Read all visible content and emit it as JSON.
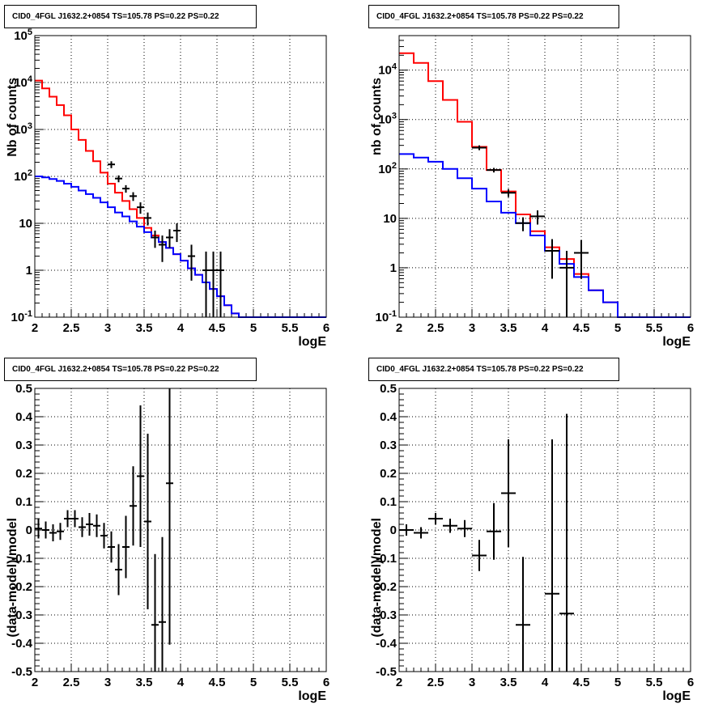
{
  "chart_data": [
    {
      "type": "line",
      "title": "CID0_4FGL J1632.2+0854 TS=105.78 PS=0.22 PS=0.22",
      "xlabel": "logE",
      "ylabel": "Nb of counts",
      "xlim": [
        2,
        6
      ],
      "ylim": [
        0.1,
        100000
      ],
      "yscale": "log",
      "grid": true,
      "xticks": [
        "2",
        "2.5",
        "3",
        "3.5",
        "4",
        "4.5",
        "5",
        "5.5",
        "6"
      ],
      "yticks": [
        "10^-1",
        "1",
        "10",
        "10^2",
        "10^3",
        "10^4",
        "10^5"
      ],
      "series": [
        {
          "color": "#ff0000",
          "style": "step",
          "bin_width": 0.1,
          "x": [
            2.05,
            2.15,
            2.25,
            2.35,
            2.45,
            2.55,
            2.65,
            2.75,
            2.85,
            2.95,
            3.05,
            3.15,
            3.25,
            3.35,
            3.45,
            3.55,
            3.65,
            3.75,
            3.85,
            3.95,
            4.05,
            4.15,
            4.25,
            4.35,
            4.45,
            4.55,
            4.65,
            4.75,
            4.85,
            4.95,
            5.05,
            5.15,
            5.25,
            5.35,
            5.45,
            5.55,
            5.65,
            5.75,
            5.85,
            5.95
          ],
          "y": [
            11000,
            7500,
            5000,
            3300,
            2000,
            1000,
            600,
            350,
            210,
            120,
            70,
            45,
            30,
            20,
            13,
            8,
            5.5,
            4,
            3,
            2.2,
            1.6,
            1.1,
            0.8,
            0.55,
            0.4,
            0.28,
            0.18,
            0.12,
            0.1,
            0.1,
            0.1,
            0.1,
            0.1,
            0.1,
            0.1,
            0.1,
            0.1,
            0.1,
            0.1,
            0.1
          ]
        },
        {
          "color": "#0000ff",
          "style": "step",
          "bin_width": 0.1,
          "x": [
            2.05,
            2.15,
            2.25,
            2.35,
            2.45,
            2.55,
            2.65,
            2.75,
            2.85,
            2.95,
            3.05,
            3.15,
            3.25,
            3.35,
            3.45,
            3.55,
            3.65,
            3.75,
            3.85,
            3.95,
            4.05,
            4.15,
            4.25,
            4.35,
            4.45,
            4.55,
            4.65,
            4.75,
            4.85,
            4.95,
            5.05,
            5.15,
            5.25,
            5.35,
            5.45,
            5.55,
            5.65,
            5.75,
            5.85,
            5.95
          ],
          "y": [
            100,
            95,
            88,
            80,
            70,
            60,
            50,
            42,
            35,
            28,
            22,
            17,
            14,
            11,
            8.5,
            6.5,
            5,
            4,
            3,
            2.2,
            1.6,
            1.1,
            0.8,
            0.55,
            0.4,
            0.28,
            0.18,
            0.12,
            0.1,
            0.1,
            0.1,
            0.1,
            0.1,
            0.1,
            0.1,
            0.1,
            0.1,
            0.1,
            0.1,
            0.1
          ]
        },
        {
          "color": "#000000",
          "style": "errorbar",
          "x": [
            3.05,
            3.15,
            3.25,
            3.35,
            3.45,
            3.55,
            3.65,
            3.75,
            3.85,
            3.95,
            4.15,
            4.35,
            4.45,
            4.55
          ],
          "xerr": 0.05,
          "y": [
            180,
            90,
            55,
            38,
            22,
            13,
            5,
            3.5,
            5,
            7,
            2,
            1,
            1,
            1
          ],
          "ylow": [
            150,
            75,
            45,
            30,
            16,
            9,
            3,
            1.5,
            3,
            4,
            0.6,
            0.1,
            0.1,
            0.1
          ],
          "yhigh": [
            210,
            105,
            65,
            46,
            28,
            17,
            7,
            5.5,
            7.5,
            10,
            3.5,
            2.5,
            2.5,
            2.5
          ]
        }
      ]
    },
    {
      "type": "line",
      "title": "CID0_4FGL J1632.2+0854 TS=105.78 PS=0.22 PS=0.22",
      "xlabel": "logE",
      "ylabel": "nb of counts",
      "xlim": [
        2,
        6
      ],
      "ylim": [
        0.1,
        50000
      ],
      "yscale": "log",
      "grid": true,
      "xticks": [
        "2",
        "2.5",
        "3",
        "3.5",
        "4",
        "4.5",
        "5",
        "5.5",
        "6"
      ],
      "yticks": [
        "10^-1",
        "1",
        "10",
        "10^2",
        "10^3",
        "10^4"
      ],
      "series": [
        {
          "color": "#ff0000",
          "style": "step",
          "bin_width": 0.2,
          "x": [
            2.1,
            2.3,
            2.5,
            2.7,
            2.9,
            3.1,
            3.3,
            3.5,
            3.7,
            3.9,
            4.1,
            4.3,
            4.5,
            4.7,
            4.9,
            5.1,
            5.3,
            5.5,
            5.7,
            5.9
          ],
          "y": [
            22000,
            14000,
            6000,
            2500,
            900,
            280,
            95,
            35,
            12,
            5.5,
            2.6,
            1.5,
            0.75,
            0.35,
            0.2,
            0.1,
            0.1,
            0.1,
            0.1,
            0.1
          ]
        },
        {
          "color": "#0000ff",
          "style": "step",
          "bin_width": 0.2,
          "x": [
            2.1,
            2.3,
            2.5,
            2.7,
            2.9,
            3.1,
            3.3,
            3.5,
            3.7,
            3.9,
            4.1,
            4.3,
            4.5,
            4.7,
            4.9,
            5.1,
            5.3,
            5.5,
            5.7,
            5.9
          ],
          "y": [
            200,
            170,
            140,
            100,
            65,
            40,
            22,
            13,
            8,
            4.5,
            2.2,
            1.2,
            0.65,
            0.35,
            0.2,
            0.1,
            0.1,
            0.1,
            0.1,
            0.1
          ]
        },
        {
          "color": "#000000",
          "style": "errorbar",
          "x": [
            3.1,
            3.3,
            3.5,
            3.7,
            3.9,
            4.1,
            4.3,
            4.5
          ],
          "xerr": 0.1,
          "y": [
            270,
            95,
            33,
            8,
            11,
            2.2,
            1,
            2
          ],
          "ylow": [
            240,
            85,
            27,
            5.5,
            7.5,
            0.6,
            0.1,
            0.6
          ],
          "yhigh": [
            300,
            105,
            39,
            10.5,
            14.5,
            3.8,
            2.2,
            3.6
          ]
        }
      ]
    },
    {
      "type": "scatter",
      "title": "CID0_4FGL J1632.2+0854 TS=105.78 PS=0.22 PS=0.22",
      "xlabel": "logE",
      "ylabel": "(data-model)/model",
      "xlim": [
        2,
        6
      ],
      "ylim": [
        -0.5,
        0.5
      ],
      "grid": true,
      "xticks": [
        "2",
        "2.5",
        "3",
        "3.5",
        "4",
        "4.5",
        "5",
        "5.5",
        "6"
      ],
      "yticks": [
        "-0.5",
        "-0.4",
        "-0.3",
        "-0.2",
        "-0.1",
        "0",
        "0.1",
        "0.2",
        "0.3",
        "0.4",
        "0.5"
      ],
      "series": [
        {
          "color": "#000000",
          "style": "errorbar",
          "xerr": 0.05,
          "x": [
            2.05,
            2.15,
            2.25,
            2.35,
            2.45,
            2.55,
            2.65,
            2.75,
            2.85,
            2.95,
            3.05,
            3.15,
            3.25,
            3.35,
            3.45,
            3.55,
            3.65,
            3.75,
            3.85
          ],
          "y": [
            0.005,
            0.0,
            -0.01,
            -0.005,
            0.04,
            0.04,
            0.01,
            0.02,
            0.015,
            -0.02,
            -0.06,
            -0.14,
            -0.06,
            0.085,
            0.19,
            0.03,
            -0.335,
            -0.325,
            0.165
          ],
          "yerr": [
            0.035,
            0.03,
            0.03,
            0.03,
            0.03,
            0.03,
            0.035,
            0.04,
            0.04,
            0.045,
            0.055,
            0.09,
            0.11,
            0.14,
            0.25,
            0.31,
            0.25,
            0.3,
            0.57
          ]
        }
      ]
    },
    {
      "type": "scatter",
      "title": "CID0_4FGL J1632.2+0854 TS=105.78 PS=0.22 PS=0.22",
      "xlabel": "logE",
      "ylabel": "(data-model)/model",
      "xlim": [
        2,
        6
      ],
      "ylim": [
        -0.5,
        0.5
      ],
      "grid": true,
      "xticks": [
        "2",
        "2.5",
        "3",
        "3.5",
        "4",
        "4.5",
        "5",
        "5.5",
        "6"
      ],
      "yticks": [
        "-0.5",
        "-0.4",
        "-0.3",
        "-0.2",
        "-0.1",
        "0",
        "0.1",
        "0.2",
        "0.3",
        "0.4",
        "0.5"
      ],
      "series": [
        {
          "color": "#000000",
          "style": "errorbar",
          "xerr": 0.1,
          "x": [
            2.1,
            2.3,
            2.5,
            2.7,
            2.9,
            3.1,
            3.3,
            3.5,
            3.7,
            4.1,
            4.3
          ],
          "y": [
            0.0,
            -0.01,
            0.04,
            0.015,
            0.005,
            -0.09,
            -0.005,
            0.13,
            -0.335,
            -0.225,
            -0.295
          ],
          "yerr": [
            0.02,
            0.02,
            0.02,
            0.025,
            0.03,
            0.055,
            0.1,
            0.19,
            0.24,
            0.545,
            0.705
          ]
        }
      ]
    }
  ]
}
